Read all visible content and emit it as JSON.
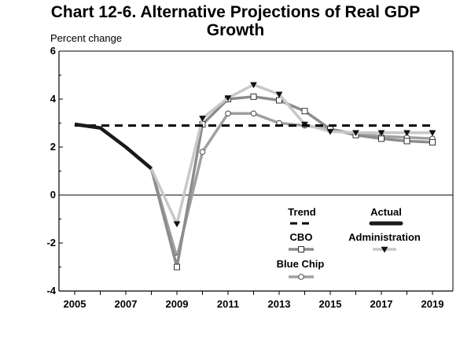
{
  "chart_data": {
    "type": "line",
    "title_line1": "Chart 12-6. Alternative Projections of Real GDP",
    "title_line2": "Growth",
    "ylabel": "Percent change",
    "xlabel": "",
    "xlim": [
      2005,
      2019
    ],
    "ylim": [
      -4,
      6
    ],
    "x_ticks": [
      2005,
      2007,
      2009,
      2011,
      2013,
      2015,
      2017,
      2019
    ],
    "y_ticks": [
      6,
      4,
      2,
      0,
      -2,
      -4
    ],
    "grid": false,
    "legend_position": "bottom-center",
    "series": [
      {
        "name": "Trend",
        "style": "dashed",
        "color": "#000000",
        "x": [
          2005,
          2019
        ],
        "y": [
          2.9,
          2.9
        ]
      },
      {
        "name": "Actual",
        "style": "thick",
        "color": "#1a1a1a",
        "x": [
          2005,
          2006,
          2007,
          2008
        ],
        "y": [
          2.95,
          2.8,
          2.0,
          1.1
        ]
      },
      {
        "name": "CBO",
        "style": "marker-square",
        "color": "#8c8c8c",
        "x": [
          2008,
          2009,
          2010,
          2011,
          2012,
          2013,
          2014,
          2015,
          2016,
          2017,
          2018,
          2019
        ],
        "y": [
          1.1,
          -3.0,
          2.95,
          4.0,
          4.1,
          3.95,
          3.5,
          2.75,
          2.5,
          2.35,
          2.25,
          2.2
        ]
      },
      {
        "name": "Administration",
        "style": "marker-triangle",
        "color": "#c8c8c8",
        "x": [
          2008,
          2009,
          2010,
          2011,
          2012,
          2013,
          2014,
          2015,
          2016,
          2017,
          2018,
          2019
        ],
        "y": [
          1.1,
          -1.2,
          3.2,
          4.05,
          4.6,
          4.2,
          2.95,
          2.65,
          2.6,
          2.6,
          2.6,
          2.6
        ]
      },
      {
        "name": "Blue Chip",
        "style": "marker-circle",
        "color": "#a0a0a0",
        "x": [
          2008,
          2009,
          2010,
          2011,
          2012,
          2013,
          2014,
          2015,
          2016,
          2017,
          2018,
          2019
        ],
        "y": [
          1.1,
          -2.6,
          1.8,
          3.4,
          3.4,
          3.0,
          2.9,
          2.75,
          2.55,
          2.45,
          2.4,
          2.35
        ]
      }
    ]
  }
}
